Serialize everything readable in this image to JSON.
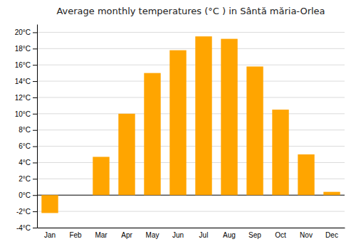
{
  "chart_data": {
    "type": "bar",
    "title": "Average monthly temperatures (°C ) in Sântă măria-Orlea",
    "categories": [
      "Jan",
      "Feb",
      "Mar",
      "Apr",
      "May",
      "Jun",
      "Jul",
      "Aug",
      "Sep",
      "Oct",
      "Nov",
      "Dec"
    ],
    "values": [
      -2.2,
      0.0,
      4.7,
      10.0,
      15.0,
      17.8,
      19.5,
      19.2,
      15.8,
      10.5,
      5.0,
      0.4
    ],
    "color": "#FFA500",
    "ylim": [
      -4,
      21
    ],
    "yticks": [
      {
        "value": -4,
        "label": "-4°C"
      },
      {
        "value": -2,
        "label": "-2°C"
      },
      {
        "value": 0,
        "label": "0°C"
      },
      {
        "value": 2,
        "label": "2°C"
      },
      {
        "value": 4,
        "label": "4°C"
      },
      {
        "value": 6,
        "label": "6°C"
      },
      {
        "value": 8,
        "label": "8°C"
      },
      {
        "value": 10,
        "label": "10°C"
      },
      {
        "value": 12,
        "label": "12°C"
      },
      {
        "value": 14,
        "label": "14°C"
      },
      {
        "value": 16,
        "label": "16°C"
      },
      {
        "value": 18,
        "label": "18°C"
      },
      {
        "value": 20,
        "label": "20°C"
      }
    ],
    "grid": true
  }
}
